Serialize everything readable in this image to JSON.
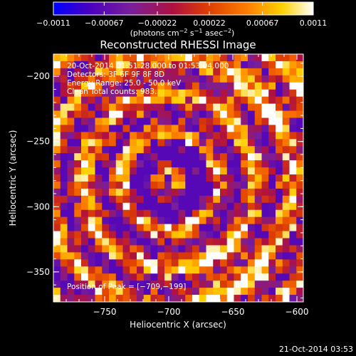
{
  "chart_data": {
    "type": "heatmap",
    "title": "Reconstructed RHESSI Image",
    "xlabel": "Heliocentric X (arcsec)",
    "ylabel": "Heliocentric Y (arcsec)",
    "xlim": [
      -790,
      -595
    ],
    "ylim": [
      -373,
      -183
    ],
    "x_ticks": [
      -750,
      -700,
      -650,
      -600
    ],
    "x_tick_labels": [
      "−750",
      "−700",
      "−650",
      "−600"
    ],
    "y_ticks": [
      -200,
      -250,
      -300,
      -350
    ],
    "y_tick_labels": [
      "−200",
      "−250",
      "−300",
      "−350"
    ],
    "colorbar": {
      "min": -0.0011,
      "max": 0.0011,
      "ticks": [
        -0.0011,
        -0.00067,
        -0.00022,
        0.00022,
        0.00067,
        0.0011
      ],
      "tick_labels": [
        "−0.0011",
        "−0.00067",
        "−0.00022",
        "0.00022",
        "0.00067",
        "0.0011"
      ],
      "unit_prefix": "(photons cm",
      "unit_exp1": "−2",
      "unit_mid": " s",
      "unit_exp2": "−1",
      "unit_mid2": " asec",
      "unit_exp3": "−2",
      "unit_suffix": ")",
      "colors": [
        "#0000ff",
        "#4a00c0",
        "#7a1f9a",
        "#b01040",
        "#e04000",
        "#ff8000",
        "#ffd000",
        "#ffffff"
      ]
    },
    "annotations": [
      "20‑Oct‑2014 01:51:28.000 to 01:53:04.000",
      "Detectors: 3F 6F 9F 8F 8D",
      "Energy Range: 25.0 - 50.0 keV",
      "Clean    Total counts: 983."
    ],
    "peak_label": "Position of Peak = [−709,−199]",
    "peak_position": [
      -709,
      -199
    ],
    "grid_nx": 36,
    "grid_ny": 35
  },
  "footer": {
    "timestamp": "21‑Oct‑2014 03:53"
  }
}
